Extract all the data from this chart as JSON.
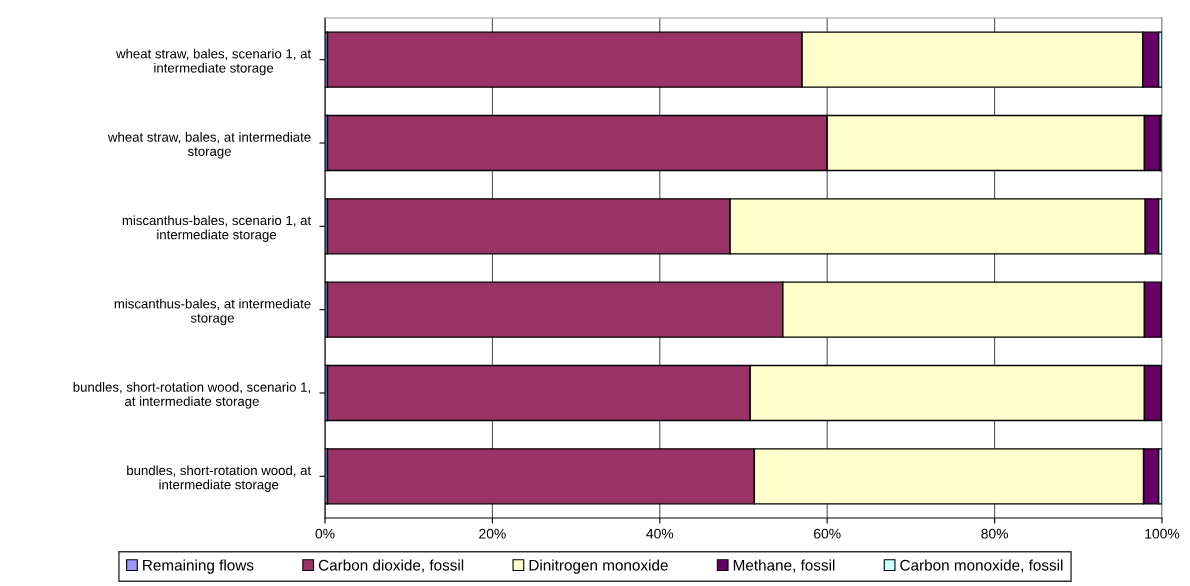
{
  "chart_data": {
    "type": "bar",
    "orientation": "horizontal",
    "stacked": true,
    "categories": [
      "wheat straw, bales, scenario 1, at\nintermediate storage",
      "wheat straw, bales, at intermediate\nstorage",
      "miscanthus-bales, scenario 1, at\nintermediate storage",
      "miscanthus-bales, at intermediate\nstorage",
      "bundles, short-rotation wood, scenario 1,\nat intermediate storage",
      "bundles, short-rotation wood, at\nintermediate storage"
    ],
    "series": [
      {
        "name": "Remaining flows",
        "color": "#9999ff",
        "values": [
          0.3,
          0.3,
          0.3,
          0.3,
          0.3,
          0.3
        ]
      },
      {
        "name": "Carbon dioxide, fossil",
        "color": "#993366",
        "values": [
          56.7,
          59.7,
          48.1,
          54.4,
          50.5,
          51.0
        ]
      },
      {
        "name": "Dinitrogen monoxide",
        "color": "#ffffcc",
        "values": [
          40.7,
          37.9,
          49.6,
          43.2,
          47.1,
          46.5
        ]
      },
      {
        "name": "Methane, fossil",
        "color": "#660066",
        "values": [
          1.9,
          1.9,
          1.6,
          2.0,
          2.0,
          1.8
        ]
      },
      {
        "name": "Carbon monoxide, fossil",
        "color": "#ccffff",
        "values": [
          0.4,
          0.2,
          0.4,
          null,
          null,
          0.4
        ]
      }
    ],
    "xlim": [
      0,
      100
    ],
    "xticks": [
      {
        "value": 0,
        "label": "0%"
      },
      {
        "value": 20,
        "label": "20%"
      },
      {
        "value": 40,
        "label": "40%"
      },
      {
        "value": 60,
        "label": "60%"
      },
      {
        "value": 80,
        "label": "80%"
      },
      {
        "value": 100,
        "label": "100%"
      }
    ],
    "grid": "x",
    "legend": "bottom"
  }
}
